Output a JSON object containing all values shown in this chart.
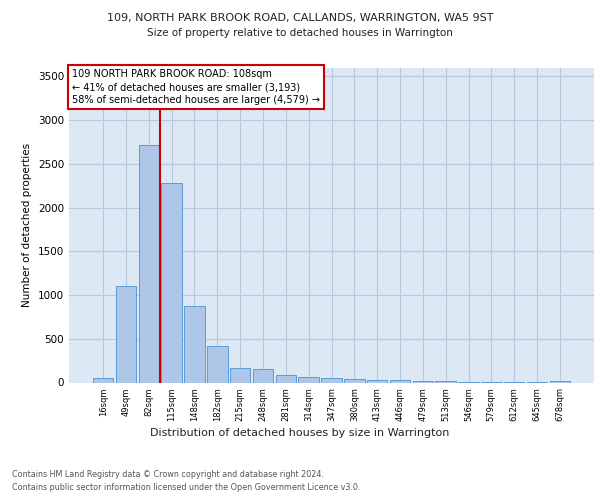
{
  "title1": "109, NORTH PARK BROOK ROAD, CALLANDS, WARRINGTON, WA5 9ST",
  "title2": "Size of property relative to detached houses in Warrington",
  "xlabel": "Distribution of detached houses by size in Warrington",
  "ylabel": "Number of detached properties",
  "footnote1": "Contains HM Land Registry data © Crown copyright and database right 2024.",
  "footnote2": "Contains public sector information licensed under the Open Government Licence v3.0.",
  "annotation_line1": "109 NORTH PARK BROOK ROAD: 108sqm",
  "annotation_line2": "← 41% of detached houses are smaller (3,193)",
  "annotation_line3": "58% of semi-detached houses are larger (4,579) →",
  "bar_labels": [
    "16sqm",
    "49sqm",
    "82sqm",
    "115sqm",
    "148sqm",
    "182sqm",
    "215sqm",
    "248sqm",
    "281sqm",
    "314sqm",
    "347sqm",
    "380sqm",
    "413sqm",
    "446sqm",
    "479sqm",
    "513sqm",
    "546sqm",
    "579sqm",
    "612sqm",
    "645sqm",
    "678sqm"
  ],
  "bar_values": [
    50,
    1100,
    2720,
    2280,
    870,
    420,
    165,
    160,
    90,
    65,
    55,
    45,
    30,
    25,
    20,
    15,
    10,
    8,
    5,
    5,
    20
  ],
  "bar_color": "#aec6e8",
  "bar_edge_color": "#5b9bd5",
  "vline_color": "#cc0000",
  "vline_pos": 2.5,
  "ylim": [
    0,
    3600
  ],
  "yticks": [
    0,
    500,
    1000,
    1500,
    2000,
    2500,
    3000,
    3500
  ],
  "annotation_box_edge": "#cc0000",
  "plot_bg_color": "#dde8f5"
}
